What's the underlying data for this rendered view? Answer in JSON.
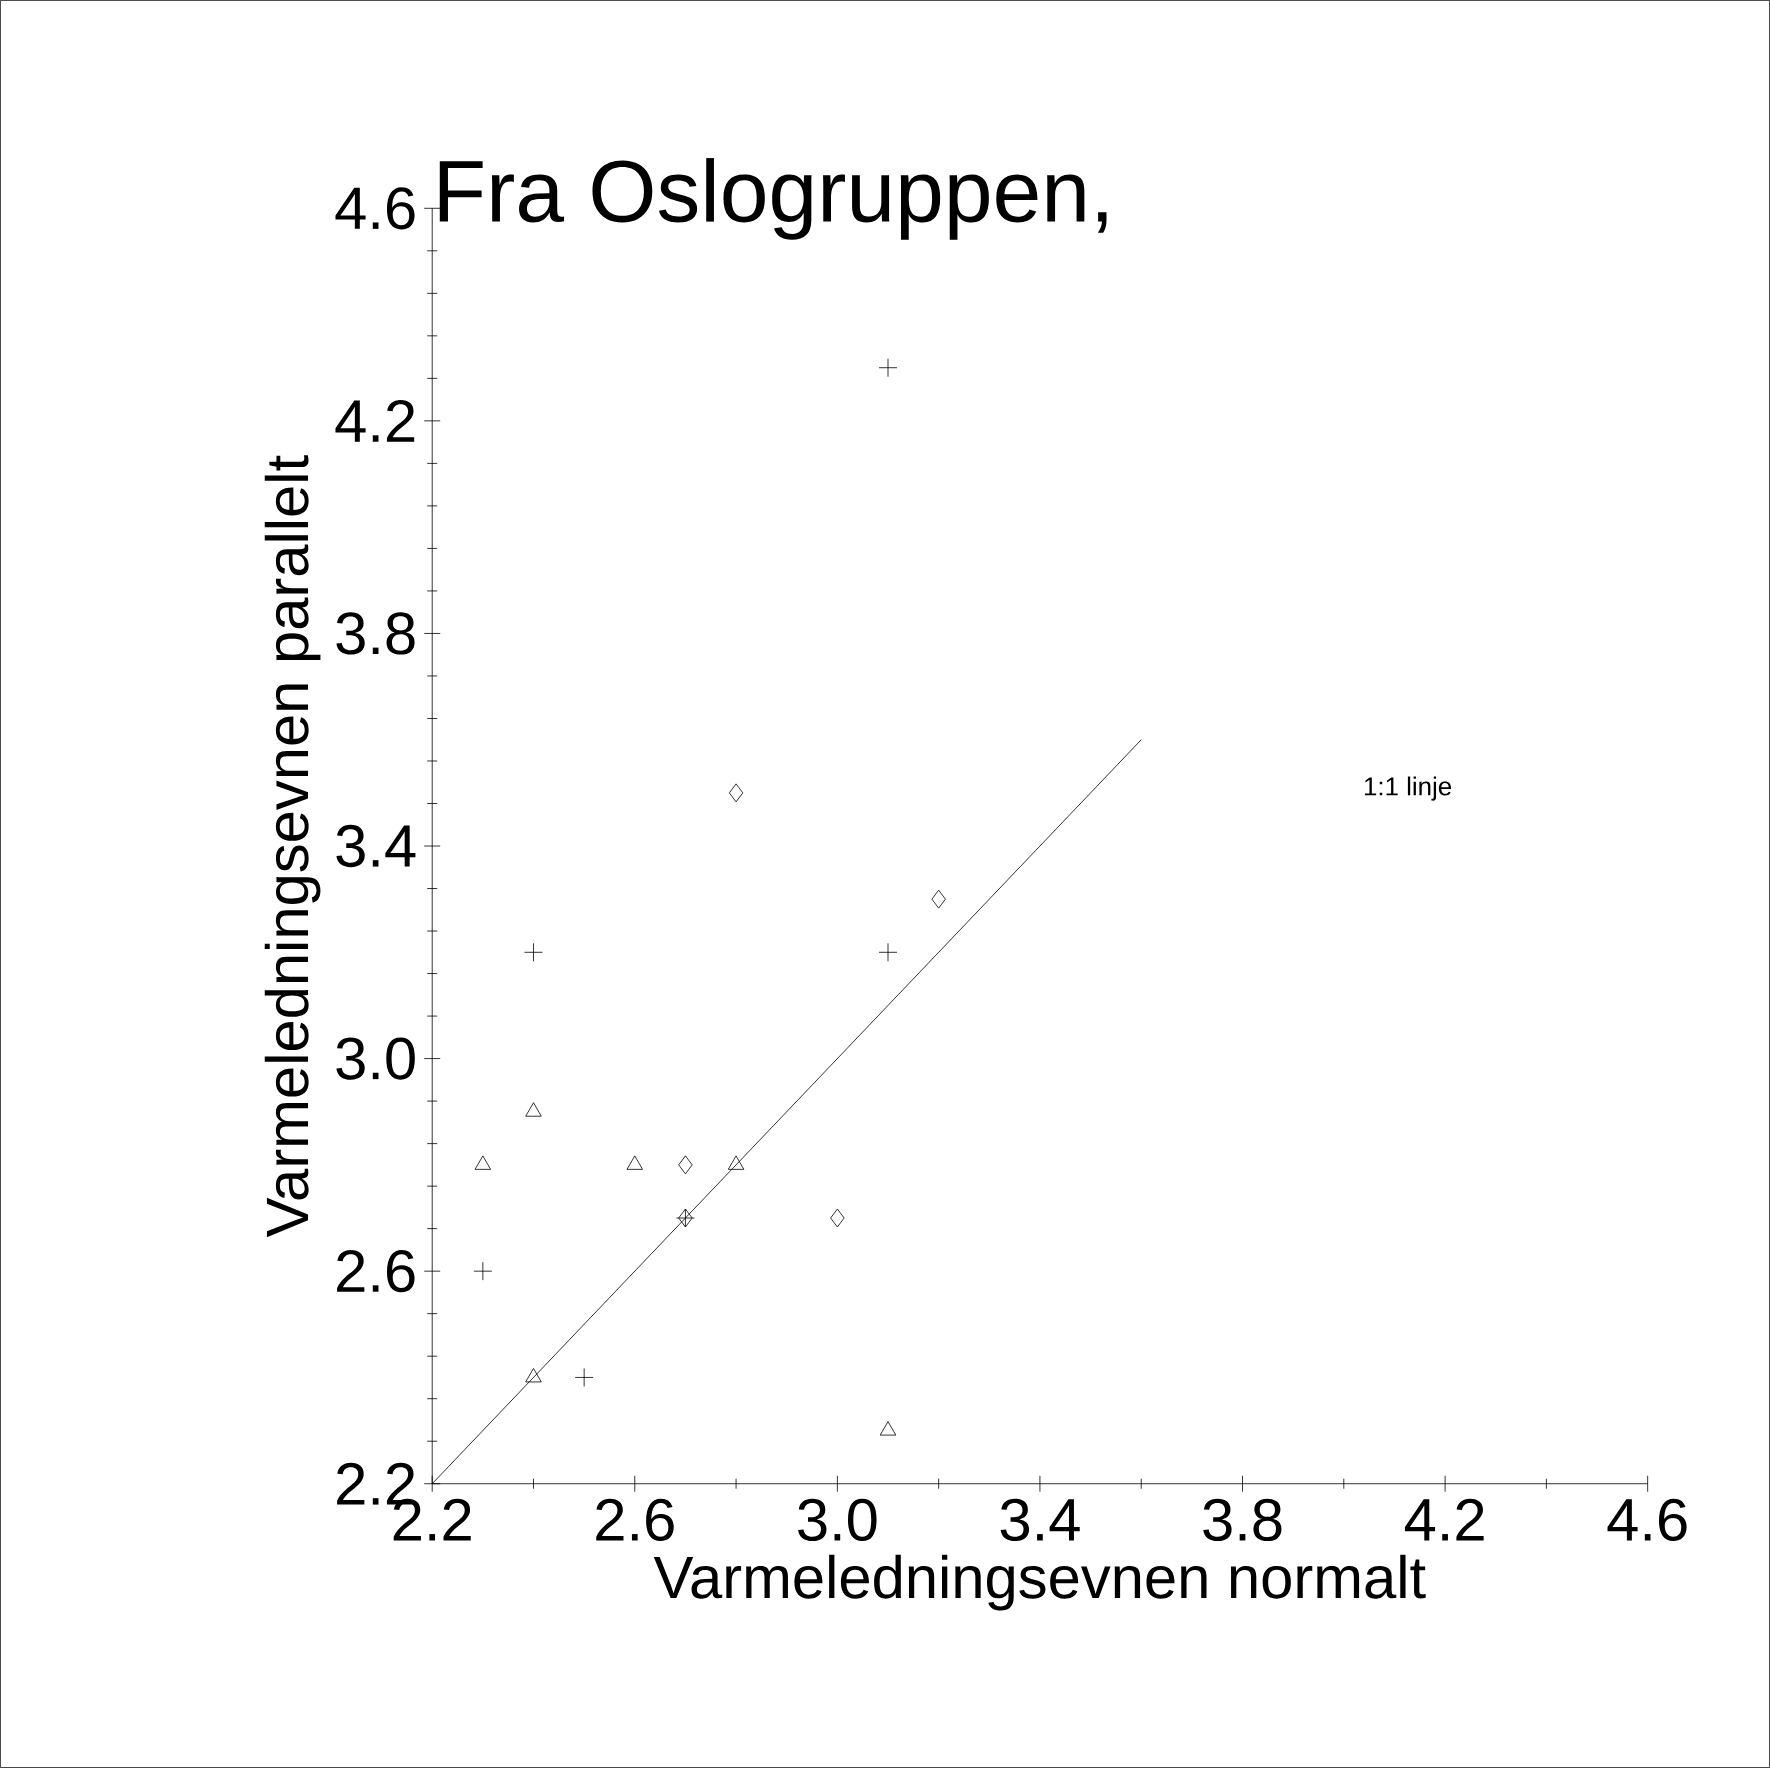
{
  "chart_data": {
    "type": "scatter",
    "title": "Fra Oslogruppen,",
    "xlabel": "Varmeledningsevnen normalt",
    "ylabel": "Varmeledningsevnen  parallelt",
    "xlim": [
      2.2,
      4.6
    ],
    "ylim": [
      2.2,
      4.6
    ],
    "xticks": [
      2.2,
      2.6,
      {
        "value": 3.0,
        "label": "3.0"
      },
      3.4,
      3.8,
      4.2,
      4.6
    ],
    "yticks": [
      2.2,
      2.6,
      {
        "value": 3.0,
        "label": "3.0"
      },
      3.4,
      3.8,
      4.2,
      4.6
    ],
    "grid": false,
    "series": [
      {
        "marker": "cross",
        "color": "#000000",
        "x": [
          2.3,
          2.4,
          2.5,
          2.7,
          3.1,
          3.1
        ],
        "values": [
          2.6,
          3.2,
          2.4,
          2.7,
          3.2,
          4.3
        ]
      },
      {
        "marker": "triangle",
        "color": "#000000",
        "x": [
          2.3,
          2.4,
          2.6,
          2.8,
          2.4,
          3.1
        ],
        "values": [
          2.8,
          2.9,
          2.8,
          2.8,
          2.4,
          2.3
        ]
      },
      {
        "marker": "diamond",
        "color": "#000000",
        "x": [
          2.8,
          3.2,
          2.7,
          3.0,
          2.7
        ],
        "values": [
          3.5,
          3.3,
          2.8,
          2.7,
          2.7
        ]
      },
      {
        "type": "line",
        "line_style": "solid",
        "color": "#000000",
        "x": [
          2.2,
          3.6
        ],
        "values": [
          2.2,
          3.6
        ]
      }
    ],
    "annotations": [
      "1:1 linje"
    ]
  }
}
